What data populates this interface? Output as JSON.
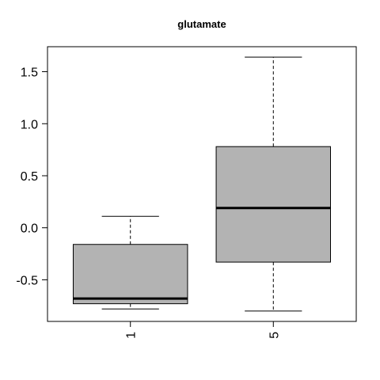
{
  "chart_data": {
    "type": "boxplot",
    "title": "glutamate",
    "xlabel": "",
    "ylabel": "",
    "categories": [
      "1",
      "5"
    ],
    "boxes": [
      {
        "category": "1",
        "whisker_low": -0.78,
        "q1": -0.73,
        "median": -0.68,
        "q3": -0.16,
        "whisker_high": 0.11
      },
      {
        "category": "5",
        "whisker_low": -0.8,
        "q1": -0.33,
        "median": 0.19,
        "q3": 0.78,
        "whisker_high": 1.64
      }
    ],
    "yticks": [
      -0.5,
      0.0,
      0.5,
      1.0,
      1.5
    ],
    "ytick_labels": [
      "-0.5",
      "0.0",
      "0.5",
      "1.0",
      "1.5"
    ],
    "ylim": [
      -0.9,
      1.74
    ],
    "grid": false,
    "box_color": "#b3b3b3"
  }
}
